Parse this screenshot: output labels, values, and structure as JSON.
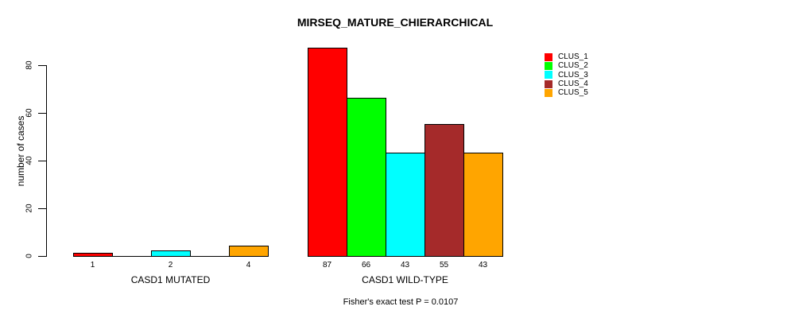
{
  "chart_data": {
    "type": "bar",
    "title": "MIRSEQ_MATURE_CHIERARCHICAL",
    "ylabel": "number of cases",
    "xlabel": "",
    "ylim": [
      0,
      87
    ],
    "yticks": [
      0,
      20,
      40,
      60,
      80
    ],
    "grid": false,
    "legend_position": "top-right-inside",
    "categories": [
      "CASD1 MUTATED",
      "CASD1 WILD-TYPE"
    ],
    "series": [
      {
        "name": "CLUS_1",
        "color": "#FF0000",
        "values": [
          1,
          87
        ]
      },
      {
        "name": "CLUS_2",
        "color": "#00FF00",
        "values": [
          0,
          66
        ]
      },
      {
        "name": "CLUS_3",
        "color": "#00FFFF",
        "values": [
          2,
          43
        ]
      },
      {
        "name": "CLUS_4",
        "color": "#A52A2A",
        "values": [
          0,
          55
        ]
      },
      {
        "name": "CLUS_5",
        "color": "#FFA500",
        "values": [
          4,
          43
        ]
      }
    ],
    "bar_labels": [
      [
        "1",
        "",
        "2",
        "",
        "4"
      ],
      [
        "87",
        "66",
        "43",
        "55",
        "43"
      ]
    ],
    "annotation": "Fisher's exact test P = 0.0107"
  }
}
